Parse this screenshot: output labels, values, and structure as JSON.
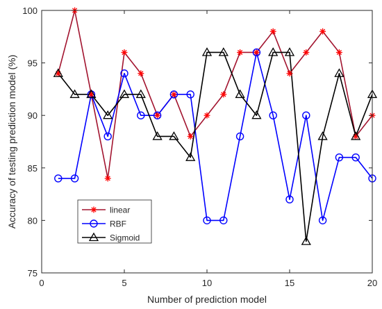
{
  "chart_data": {
    "type": "line",
    "title": "",
    "xlabel": "Number of prediction model",
    "ylabel": "Accuracy of testing prediction model (%)",
    "xlim": [
      0,
      20
    ],
    "ylim": [
      75,
      100
    ],
    "xticks": [
      0,
      5,
      10,
      15,
      20
    ],
    "yticks": [
      75,
      80,
      85,
      90,
      95,
      100
    ],
    "grid": false,
    "legend_position": "bottom-left",
    "x": [
      1,
      2,
      3,
      4,
      5,
      6,
      7,
      8,
      9,
      10,
      11,
      12,
      13,
      14,
      15,
      16,
      17,
      18,
      19,
      20
    ],
    "series": [
      {
        "name": "linear",
        "color": "#a2142f",
        "marker_color": "#ff0000",
        "marker": "asterisk",
        "values": [
          94,
          100,
          92,
          84,
          96,
          94,
          90,
          92,
          88,
          90,
          92,
          96,
          96,
          98,
          94,
          96,
          98,
          96,
          88,
          90
        ]
      },
      {
        "name": "RBF",
        "color": "#0000ff",
        "marker_color": "#0000ff",
        "marker": "circle",
        "values": [
          84,
          84,
          92,
          88,
          94,
          90,
          90,
          92,
          92,
          80,
          80,
          88,
          96,
          90,
          82,
          90,
          80,
          86,
          86,
          84
        ]
      },
      {
        "name": "Sigmoid",
        "color": "#000000",
        "marker_color": "#000000",
        "marker": "triangle",
        "values": [
          94,
          92,
          92,
          90,
          92,
          92,
          88,
          88,
          86,
          96,
          96,
          92,
          90,
          96,
          96,
          78,
          88,
          94,
          88,
          92
        ]
      }
    ]
  }
}
